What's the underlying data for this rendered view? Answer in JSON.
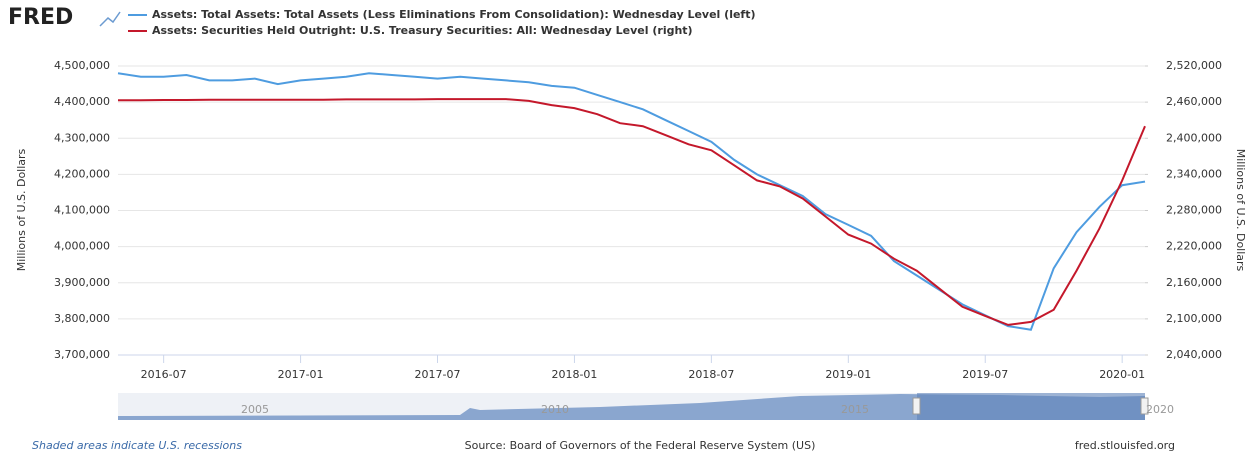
{
  "chart_data": {
    "type": "line",
    "logo": "FRED",
    "y_label": "Millions of U.S. Dollars",
    "y2_label": "Millions of U.S. Dollars",
    "x": [
      "2016-05",
      "2016-06",
      "2016-07",
      "2016-08",
      "2016-09",
      "2016-10",
      "2016-11",
      "2016-12",
      "2017-01",
      "2017-02",
      "2017-03",
      "2017-04",
      "2017-05",
      "2017-06",
      "2017-07",
      "2017-08",
      "2017-09",
      "2017-10",
      "2017-11",
      "2017-12",
      "2018-01",
      "2018-02",
      "2018-03",
      "2018-04",
      "2018-05",
      "2018-06",
      "2018-07",
      "2018-08",
      "2018-09",
      "2018-10",
      "2018-11",
      "2018-12",
      "2019-01",
      "2019-02",
      "2019-03",
      "2019-04",
      "2019-05",
      "2019-06",
      "2019-07",
      "2019-08",
      "2019-09",
      "2019-10",
      "2019-11",
      "2019-12",
      "2020-01",
      "2020-02"
    ],
    "series": [
      {
        "name": "Assets: Total Assets: Total Assets (Less Eliminations From Consolidation): Wednesday Level (left)",
        "color": "#4e9ce0",
        "axis": "y",
        "values": [
          4480000,
          4470000,
          4470000,
          4475000,
          4460000,
          4460000,
          4465000,
          4450000,
          4460000,
          4465000,
          4470000,
          4480000,
          4475000,
          4470000,
          4465000,
          4470000,
          4465000,
          4460000,
          4455000,
          4445000,
          4440000,
          4420000,
          4400000,
          4380000,
          4350000,
          4320000,
          4290000,
          4240000,
          4200000,
          4170000,
          4140000,
          4090000,
          4060000,
          4030000,
          3960000,
          3920000,
          3880000,
          3840000,
          3810000,
          3780000,
          3770000,
          3940000,
          4040000,
          4110000,
          4170000,
          4180000
        ]
      },
      {
        "name": "Assets: Securities Held Outright: U.S. Treasury Securities: All: Wednesday Level (right)",
        "color": "#c4182b",
        "axis": "y2",
        "values": [
          2463000,
          2463000,
          2463500,
          2463500,
          2464000,
          2464000,
          2464000,
          2464000,
          2464000,
          2464000,
          2464500,
          2464500,
          2464500,
          2464500,
          2465000,
          2465000,
          2465000,
          2465000,
          2462000,
          2455000,
          2450000,
          2440000,
          2425000,
          2420000,
          2405000,
          2390000,
          2380000,
          2355000,
          2330000,
          2320000,
          2300000,
          2270000,
          2240000,
          2225000,
          2200000,
          2180000,
          2150000,
          2120000,
          2105000,
          2090000,
          2095000,
          2115000,
          2180000,
          2250000,
          2330000,
          2420000
        ]
      }
    ],
    "xlim": [
      "2016-05",
      "2020-02"
    ],
    "xticks": [
      "2016-07",
      "2017-01",
      "2017-07",
      "2018-01",
      "2018-07",
      "2019-01",
      "2019-07",
      "2020-01"
    ],
    "ylim": [
      3700000,
      4500000
    ],
    "yticks": [
      {
        "value": 3700000,
        "label": "3,700,000"
      },
      {
        "value": 3800000,
        "label": "3,800,000"
      },
      {
        "value": 3900000,
        "label": "3,900,000"
      },
      {
        "value": 4000000,
        "label": "4,000,000"
      },
      {
        "value": 4100000,
        "label": "4,100,000"
      },
      {
        "value": 4200000,
        "label": "4,200,000"
      },
      {
        "value": 4300000,
        "label": "4,300,000"
      },
      {
        "value": 4400000,
        "label": "4,400,000"
      },
      {
        "value": 4500000,
        "label": "4,500,000"
      }
    ],
    "y2lim": [
      2040000,
      2520000
    ],
    "y2ticks": [
      {
        "value": 2040000,
        "label": "2,040,000"
      },
      {
        "value": 2100000,
        "label": "2,100,000"
      },
      {
        "value": 2160000,
        "label": "2,160,000"
      },
      {
        "value": 2220000,
        "label": "2,220,000"
      },
      {
        "value": 2280000,
        "label": "2,280,000"
      },
      {
        "value": 2340000,
        "label": "2,340,000"
      },
      {
        "value": 2400000,
        "label": "2,400,000"
      },
      {
        "value": 2460000,
        "label": "2,460,000"
      },
      {
        "value": 2520000,
        "label": "2,520,000"
      }
    ],
    "grid": true,
    "navigator_labels": [
      "2005",
      "2010",
      "2015",
      "2020"
    ],
    "note": "Shaded areas indicate U.S. recessions",
    "source": "Source: Board of Governors of the Federal Reserve System (US)",
    "site": "fred.stlouisfed.org"
  }
}
